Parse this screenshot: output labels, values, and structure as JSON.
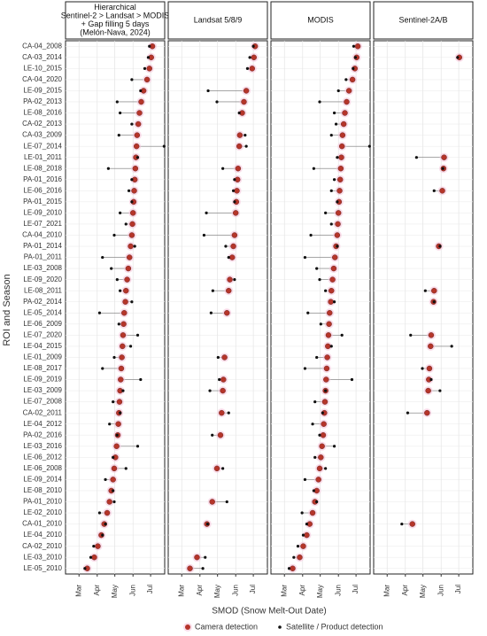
{
  "chart_data": {
    "type": "dot",
    "x_label": "SMOD (Snow Melt-Out Date)",
    "y_label": "ROI and Season",
    "xlim": [
      37,
      206
    ],
    "xticks": [
      {
        "value": 60,
        "label": "Mar"
      },
      {
        "value": 91,
        "label": "Apr"
      },
      {
        "value": 121,
        "label": "May"
      },
      {
        "value": 152,
        "label": "Jun"
      },
      {
        "value": 182,
        "label": "Jul"
      }
    ],
    "grid": true,
    "legend": "bottom",
    "categories": [
      "CA-04_2008",
      "CA-03_2014",
      "LE-10_2015",
      "CA-04_2020",
      "LE-09_2015",
      "PA-02_2013",
      "LE-08_2016",
      "CA-02_2013",
      "CA-03_2009",
      "LE-07_2014",
      "LE-01_2011",
      "LE-08_2018",
      "PA-01_2016",
      "LE-06_2016",
      "PA-01_2015",
      "LE-09_2010",
      "LE-07_2021",
      "CA-04_2010",
      "PA-01_2014",
      "PA-01_2011",
      "LE-03_2008",
      "LE-09_2020",
      "LE-08_2011",
      "PA-02_2014",
      "LE-05_2014",
      "LE-06_2009",
      "LE-07_2020",
      "LE-04_2015",
      "LE-01_2009",
      "LE-08_2017",
      "LE-09_2019",
      "LE-03_2009",
      "LE-07_2008",
      "CA-02_2011",
      "LE-04_2012",
      "PA-02_2016",
      "LE-03_2016",
      "LE-06_2012",
      "LE-06_2008",
      "LE-09_2014",
      "LE-08_2010",
      "PA-01_2010",
      "LE-02_2010",
      "CA-01_2010",
      "LE-04_2010",
      "CA-02_2010",
      "LE-03_2010",
      "LE-05_2010"
    ],
    "series": [
      {
        "name": "Camera detection",
        "color": "#b5352a",
        "values": [
          185,
          183,
          180,
          176,
          170,
          166,
          163,
          161,
          159,
          158,
          157,
          156,
          155,
          154,
          153,
          152,
          151,
          150,
          148,
          146,
          144,
          142,
          140,
          139,
          137,
          136,
          135,
          134,
          133,
          132,
          131,
          130,
          129,
          128,
          127,
          126,
          124,
          122,
          120,
          118,
          115,
          112,
          108,
          103,
          98,
          92,
          86,
          74
        ]
      },
      {
        "name": "Satellite / Product detection",
        "color": "#111111"
      }
    ],
    "panels": [
      {
        "title": [
          "Hierarchical",
          "Sentinel-2 > Landsat > MODIS",
          "+ Gap filling 5 days",
          "(Melón-Nava, 2024)"
        ],
        "values": [
          180,
          178,
          172,
          150,
          165,
          125,
          130,
          150,
          128,
          205,
          160,
          110,
          150,
          145,
          150,
          130,
          140,
          120,
          155,
          100,
          115,
          125,
          130,
          150,
          95,
          128,
          160,
          148,
          120,
          100,
          165,
          135,
          118,
          130,
          112,
          125,
          160,
          118,
          140,
          105,
          118,
          120,
          95,
          105,
          100,
          85,
          80,
          70
        ]
      },
      {
        "title": [
          "Landsat 5/8/9"
        ],
        "values": [
          182,
          176,
          172,
          null,
          105,
          120,
          158,
          null,
          168,
          170,
          null,
          130,
          150,
          148,
          150,
          102,
          null,
          98,
          135,
          140,
          null,
          150,
          113,
          null,
          110,
          null,
          null,
          null,
          122,
          null,
          124,
          108,
          null,
          140,
          null,
          112,
          null,
          null,
          130,
          null,
          null,
          137,
          null,
          104,
          null,
          null,
          100,
          96
        ]
      },
      {
        "title": [
          "MODIS"
        ],
        "values": [
          178,
          181,
          177,
          165,
          152,
          120,
          145,
          148,
          140,
          205,
          150,
          110,
          145,
          140,
          150,
          130,
          140,
          105,
          150,
          95,
          115,
          120,
          130,
          145,
          100,
          122,
          158,
          140,
          115,
          95,
          175,
          130,
          112,
          125,
          108,
          120,
          145,
          112,
          130,
          95,
          110,
          115,
          90,
          98,
          92,
          83,
          76,
          68
        ]
      },
      {
        "title": [
          "Sentinel-2A/B"
        ],
        "values": [
          null,
          180,
          null,
          null,
          null,
          null,
          null,
          null,
          null,
          null,
          110,
          155,
          null,
          140,
          null,
          null,
          null,
          null,
          150,
          null,
          null,
          null,
          125,
          140,
          null,
          null,
          100,
          170,
          null,
          120,
          135,
          150,
          null,
          95,
          null,
          null,
          null,
          null,
          null,
          null,
          null,
          null,
          null,
          85,
          null,
          null,
          null,
          null
        ]
      }
    ]
  }
}
